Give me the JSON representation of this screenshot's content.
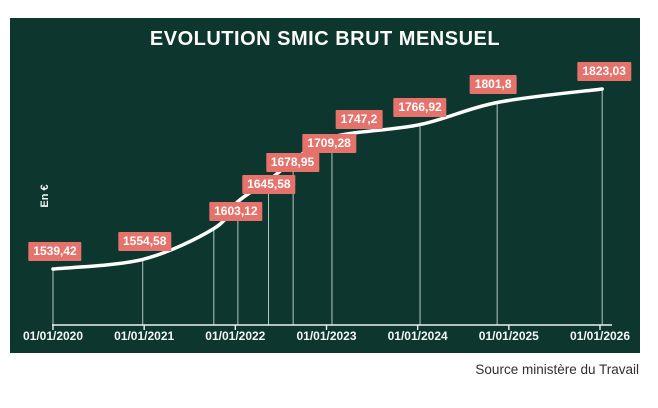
{
  "chart": {
    "title": "EVOLUTION SMIC BRUT MENSUEL",
    "y_axis_label": "En €"
  },
  "page": {
    "source_note": "Source ministère du Travail"
  },
  "colors": {
    "page_background": "#ffffff",
    "chart_background": "#0d362e",
    "line": "#fdfdfb",
    "drop_line": "#cfe2dd",
    "axis": "#e9f1ef",
    "label_box": "#e5736b",
    "label_text": "#ffffff",
    "tick_label": "#f3f6f5",
    "source_text": "#2f2f2f"
  },
  "chart_data": {
    "type": "line",
    "title": "EVOLUTION SMIC BRUT MENSUEL",
    "ylabel": "En €",
    "xlabel": "",
    "x_tick_labels": [
      "01/01/2020",
      "01/01/2021",
      "01/01/2022",
      "01/01/2023",
      "01/01/2024",
      "01/01/2025",
      "01/01/2026"
    ],
    "ylim": [
      1500,
      1860
    ],
    "grid": false,
    "legend": false,
    "points": [
      {
        "label": "1539,42",
        "value": 1539.42,
        "x_pos": 0.0
      },
      {
        "label": "1554,58",
        "value": 1554.58,
        "x_pos": 0.164
      },
      {
        "label": "1603,12",
        "value": 1603.12,
        "x_pos": 0.294
      },
      {
        "label": "1645,58",
        "value": 1645.58,
        "x_pos": 0.338
      },
      {
        "label": "1678,95",
        "value": 1678.95,
        "x_pos": 0.394
      },
      {
        "label": "1709,28",
        "value": 1709.28,
        "x_pos": 0.439
      },
      {
        "label": "1747,2",
        "value": 1747.2,
        "x_pos": 0.51
      },
      {
        "label": "1766,92",
        "value": 1766.92,
        "x_pos": 0.671
      },
      {
        "label": "1801,8",
        "value": 1801.8,
        "x_pos": 0.812
      },
      {
        "label": "1823,03",
        "value": 1823.03,
        "x_pos": 1.004
      }
    ]
  }
}
